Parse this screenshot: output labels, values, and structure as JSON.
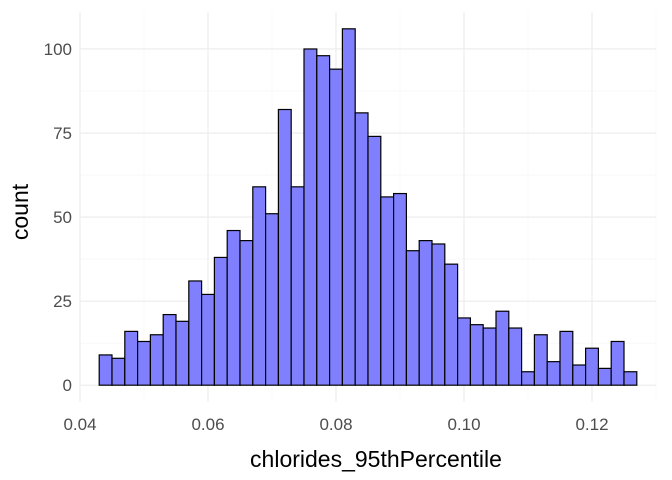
{
  "chart_data": {
    "type": "histogram",
    "xlabel": "chlorides_95thPercentile",
    "ylabel": "count",
    "xlim": [
      0.04,
      0.13
    ],
    "ylim": [
      -5,
      111
    ],
    "x_major_ticks": [
      0.04,
      0.06,
      0.08,
      0.1,
      0.12
    ],
    "x_tick_labels": [
      "0.04",
      "0.06",
      "0.08",
      "0.10",
      "0.12"
    ],
    "x_minor_ticks": [
      0.05,
      0.07,
      0.09,
      0.11,
      0.13
    ],
    "y_major_ticks": [
      0,
      25,
      50,
      75,
      100
    ],
    "y_tick_labels": [
      "0",
      "25",
      "50",
      "75",
      "100"
    ],
    "y_minor_ticks": [
      12.5,
      37.5,
      62.5,
      87.5
    ],
    "grid": true,
    "bin_start": 0.043,
    "bin_width": 0.002,
    "values": [
      9,
      8,
      16,
      13,
      15,
      21,
      19,
      31,
      27,
      38,
      46,
      43,
      59,
      51,
      82,
      59,
      100,
      98,
      94,
      106,
      81,
      74,
      56,
      57,
      40,
      43,
      42,
      36,
      20,
      18,
      17,
      22,
      17,
      4,
      15,
      7,
      16,
      6,
      11,
      5,
      13,
      4
    ],
    "bar_color": "#8080ff",
    "bar_outline": "#000000"
  }
}
